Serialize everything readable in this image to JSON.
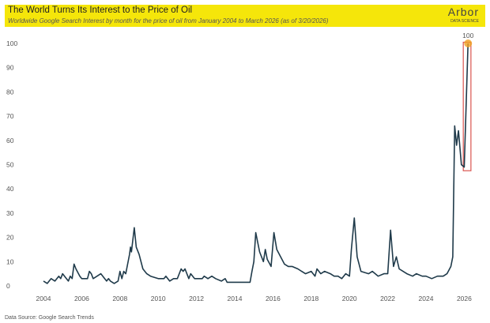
{
  "header": {
    "title": "The World Turns Its Interest to the Price of Oil",
    "subtitle": "Worldwide Google Search Interest by month for the price of oil from January 2004 to March 2026 (as of 3/20/2026)",
    "logo_text": "Arbor",
    "logo_subtext": "DATA SCIENCE",
    "banner_color": "#f5e60a"
  },
  "footer": {
    "source": "Data Source: Google Search Trends"
  },
  "chart_data": {
    "type": "line",
    "title": "The World Turns Its Interest to the Price of Oil",
    "xlabel": "",
    "ylabel": "",
    "xlim": [
      2004,
      2026.3
    ],
    "ylim": [
      0,
      100
    ],
    "x_ticks": [
      "2004",
      "2006",
      "2008",
      "2010",
      "2012",
      "2014",
      "2016",
      "2018",
      "2020",
      "2022",
      "2024",
      "2026"
    ],
    "y_ticks": [
      "0",
      "10",
      "20",
      "30",
      "40",
      "50",
      "60",
      "70",
      "80",
      "90",
      "100"
    ],
    "grid": false,
    "line_color": "#1f3a4a",
    "highlight_color": "#d9534f",
    "peak_marker_color": "#f0a020",
    "annotation": {
      "label": "100",
      "x": 2026.2,
      "y": 100
    },
    "points": [
      [
        2004.0,
        2
      ],
      [
        2004.2,
        1
      ],
      [
        2004.4,
        3
      ],
      [
        2004.6,
        2
      ],
      [
        2004.8,
        4
      ],
      [
        2004.9,
        3
      ],
      [
        2005.0,
        5
      ],
      [
        2005.2,
        3
      ],
      [
        2005.3,
        2
      ],
      [
        2005.4,
        4
      ],
      [
        2005.5,
        3
      ],
      [
        2005.6,
        9
      ],
      [
        2005.7,
        7
      ],
      [
        2005.9,
        4
      ],
      [
        2006.0,
        3
      ],
      [
        2006.3,
        3
      ],
      [
        2006.4,
        6
      ],
      [
        2006.5,
        5
      ],
      [
        2006.6,
        3
      ],
      [
        2006.8,
        4
      ],
      [
        2007.0,
        5
      ],
      [
        2007.2,
        3
      ],
      [
        2007.3,
        2
      ],
      [
        2007.4,
        3
      ],
      [
        2007.5,
        2
      ],
      [
        2007.7,
        1
      ],
      [
        2007.9,
        2
      ],
      [
        2008.0,
        6
      ],
      [
        2008.1,
        3
      ],
      [
        2008.2,
        6
      ],
      [
        2008.3,
        5
      ],
      [
        2008.4,
        9
      ],
      [
        2008.5,
        13
      ],
      [
        2008.55,
        16
      ],
      [
        2008.6,
        14
      ],
      [
        2008.75,
        24
      ],
      [
        2008.85,
        16
      ],
      [
        2009.0,
        13
      ],
      [
        2009.2,
        7
      ],
      [
        2009.4,
        5
      ],
      [
        2009.6,
        4
      ],
      [
        2010.0,
        3
      ],
      [
        2010.3,
        3
      ],
      [
        2010.4,
        4
      ],
      [
        2010.6,
        2
      ],
      [
        2010.8,
        3
      ],
      [
        2011.0,
        3
      ],
      [
        2011.2,
        7
      ],
      [
        2011.3,
        6
      ],
      [
        2011.4,
        7
      ],
      [
        2011.6,
        3
      ],
      [
        2011.7,
        5
      ],
      [
        2011.9,
        3
      ],
      [
        2012.3,
        3
      ],
      [
        2012.4,
        4
      ],
      [
        2012.6,
        3
      ],
      [
        2012.8,
        4
      ],
      [
        2013.0,
        3
      ],
      [
        2013.3,
        2
      ],
      [
        2013.5,
        3
      ],
      [
        2013.6,
        1.5
      ],
      [
        2014.5,
        1.5
      ],
      [
        2014.8,
        1.5
      ],
      [
        2014.9,
        6
      ],
      [
        2015.0,
        10
      ],
      [
        2015.1,
        22
      ],
      [
        2015.3,
        14
      ],
      [
        2015.5,
        10
      ],
      [
        2015.6,
        15
      ],
      [
        2015.7,
        11
      ],
      [
        2015.9,
        8
      ],
      [
        2016.05,
        22
      ],
      [
        2016.2,
        15
      ],
      [
        2016.4,
        12
      ],
      [
        2016.6,
        9
      ],
      [
        2016.8,
        8
      ],
      [
        2017.0,
        8
      ],
      [
        2017.3,
        7
      ],
      [
        2017.5,
        6
      ],
      [
        2017.7,
        5
      ],
      [
        2018.0,
        6
      ],
      [
        2018.2,
        4
      ],
      [
        2018.3,
        7
      ],
      [
        2018.5,
        5
      ],
      [
        2018.7,
        6
      ],
      [
        2019.0,
        5
      ],
      [
        2019.2,
        4
      ],
      [
        2019.4,
        4
      ],
      [
        2019.6,
        3
      ],
      [
        2019.8,
        5
      ],
      [
        2020.0,
        4
      ],
      [
        2020.1,
        15
      ],
      [
        2020.25,
        28
      ],
      [
        2020.4,
        12
      ],
      [
        2020.6,
        6
      ],
      [
        2021.0,
        5
      ],
      [
        2021.2,
        6
      ],
      [
        2021.5,
        4
      ],
      [
        2021.8,
        5
      ],
      [
        2022.0,
        5
      ],
      [
        2022.15,
        23
      ],
      [
        2022.3,
        8
      ],
      [
        2022.45,
        12
      ],
      [
        2022.6,
        7
      ],
      [
        2022.8,
        6
      ],
      [
        2023.0,
        5
      ],
      [
        2023.3,
        4
      ],
      [
        2023.5,
        5
      ],
      [
        2023.8,
        4
      ],
      [
        2024.0,
        4
      ],
      [
        2024.3,
        3
      ],
      [
        2024.6,
        4
      ],
      [
        2024.9,
        4
      ],
      [
        2025.1,
        5
      ],
      [
        2025.3,
        8
      ],
      [
        2025.4,
        12
      ],
      [
        2025.5,
        66
      ],
      [
        2025.6,
        58
      ],
      [
        2025.7,
        64
      ],
      [
        2025.85,
        50
      ],
      [
        2026.0,
        49
      ],
      [
        2026.2,
        100
      ]
    ]
  }
}
